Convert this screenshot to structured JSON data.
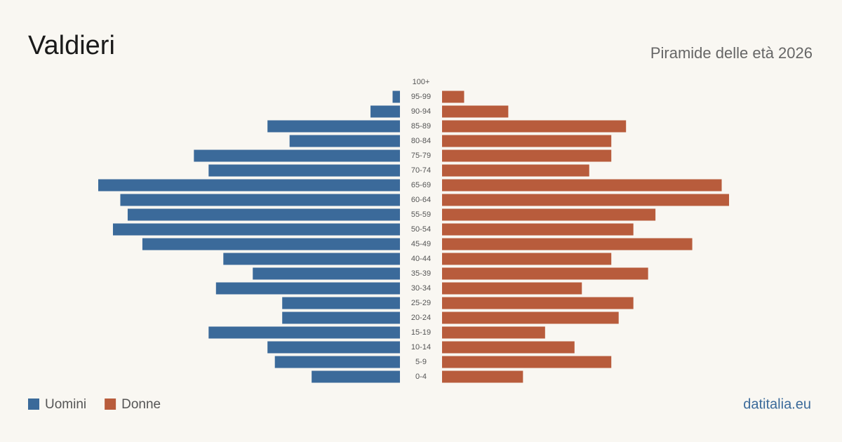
{
  "chart_data": {
    "type": "pyramid",
    "title": "Valdieri",
    "subtitle": "Piramide delle età 2026",
    "source": "datitalia.eu",
    "categories": [
      "100+",
      "95-99",
      "90-94",
      "85-89",
      "80-84",
      "75-79",
      "70-74",
      "65-69",
      "60-64",
      "55-59",
      "50-54",
      "45-49",
      "40-44",
      "35-39",
      "30-34",
      "25-29",
      "20-24",
      "15-19",
      "10-14",
      "5-9",
      "0-4"
    ],
    "series": [
      {
        "name": "Uomini",
        "color": "#3b6a9a",
        "values": [
          0,
          1,
          4,
          18,
          15,
          28,
          26,
          41,
          38,
          37,
          39,
          35,
          24,
          20,
          25,
          16,
          16,
          26,
          18,
          17,
          12
        ]
      },
      {
        "name": "Donne",
        "color": "#b85c3c",
        "values": [
          0,
          3,
          9,
          25,
          23,
          23,
          20,
          38,
          39,
          29,
          26,
          34,
          23,
          28,
          19,
          26,
          24,
          14,
          18,
          23,
          11
        ]
      }
    ],
    "legend": "bottom-left"
  }
}
